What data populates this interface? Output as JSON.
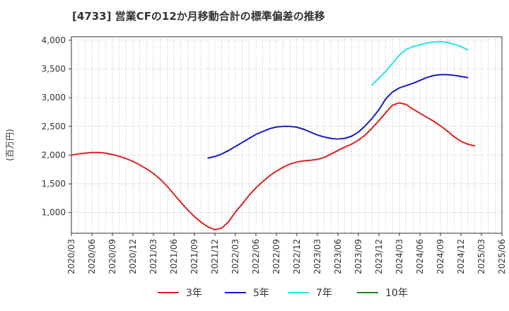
{
  "chart_data": {
    "type": "line",
    "title": "[4733]  営業CFの12か月移動合計の標準偏差の推移",
    "ylabel": "(百万円)",
    "xlabel": "",
    "ylim": [
      640,
      4060
    ],
    "y_ticks": [
      1000,
      1500,
      2000,
      2500,
      3000,
      3500,
      4000
    ],
    "y_tick_labels": [
      "1,000",
      "1,500",
      "2,000",
      "2,500",
      "3,000",
      "3,500",
      "4,000"
    ],
    "x_tick_labels": [
      "2020/03",
      "2020/06",
      "2020/09",
      "2020/12",
      "2021/03",
      "2021/06",
      "2021/09",
      "2021/12",
      "2022/03",
      "2022/06",
      "2022/09",
      "2022/12",
      "2023/03",
      "2023/06",
      "2023/09",
      "2023/12",
      "2024/03",
      "2024/06",
      "2024/09",
      "2024/12",
      "2025/03",
      "2025/06"
    ],
    "grid": true,
    "legend_position": "bottom",
    "series": [
      {
        "name": "3年",
        "color": "#dd2222",
        "points": [
          [
            "2020/03",
            2000
          ],
          [
            "2020/04",
            2020
          ],
          [
            "2020/05",
            2035
          ],
          [
            "2020/06",
            2045
          ],
          [
            "2020/07",
            2045
          ],
          [
            "2020/08",
            2035
          ],
          [
            "2020/09",
            2010
          ],
          [
            "2020/10",
            1980
          ],
          [
            "2020/11",
            1940
          ],
          [
            "2020/12",
            1890
          ],
          [
            "2021/01",
            1830
          ],
          [
            "2021/02",
            1760
          ],
          [
            "2021/03",
            1680
          ],
          [
            "2021/04",
            1580
          ],
          [
            "2021/05",
            1460
          ],
          [
            "2021/06",
            1320
          ],
          [
            "2021/07",
            1180
          ],
          [
            "2021/08",
            1050
          ],
          [
            "2021/09",
            930
          ],
          [
            "2021/10",
            830
          ],
          [
            "2021/11",
            750
          ],
          [
            "2021/12",
            700
          ],
          [
            "2022/01",
            730
          ],
          [
            "2022/02",
            840
          ],
          [
            "2022/03",
            1010
          ],
          [
            "2022/04",
            1150
          ],
          [
            "2022/05",
            1300
          ],
          [
            "2022/06",
            1430
          ],
          [
            "2022/07",
            1540
          ],
          [
            "2022/08",
            1640
          ],
          [
            "2022/09",
            1720
          ],
          [
            "2022/10",
            1790
          ],
          [
            "2022/11",
            1845
          ],
          [
            "2022/12",
            1880
          ],
          [
            "2023/01",
            1900
          ],
          [
            "2023/02",
            1910
          ],
          [
            "2023/03",
            1925
          ],
          [
            "2023/04",
            1960
          ],
          [
            "2023/05",
            2020
          ],
          [
            "2023/06",
            2080
          ],
          [
            "2023/07",
            2140
          ],
          [
            "2023/08",
            2190
          ],
          [
            "2023/09",
            2260
          ],
          [
            "2023/10",
            2350
          ],
          [
            "2023/11",
            2470
          ],
          [
            "2023/12",
            2600
          ],
          [
            "2024/01",
            2740
          ],
          [
            "2024/02",
            2870
          ],
          [
            "2024/03",
            2910
          ],
          [
            "2024/04",
            2880
          ],
          [
            "2024/05",
            2800
          ],
          [
            "2024/06",
            2730
          ],
          [
            "2024/07",
            2660
          ],
          [
            "2024/08",
            2590
          ],
          [
            "2024/09",
            2510
          ],
          [
            "2024/10",
            2420
          ],
          [
            "2024/11",
            2320
          ],
          [
            "2024/12",
            2240
          ],
          [
            "2025/01",
            2190
          ],
          [
            "2025/02",
            2160
          ]
        ]
      },
      {
        "name": "5年",
        "color": "#1a1acc",
        "points": [
          [
            "2021/11",
            1950
          ],
          [
            "2021/12",
            1975
          ],
          [
            "2022/01",
            2020
          ],
          [
            "2022/02",
            2080
          ],
          [
            "2022/03",
            2150
          ],
          [
            "2022/04",
            2220
          ],
          [
            "2022/05",
            2290
          ],
          [
            "2022/06",
            2360
          ],
          [
            "2022/07",
            2410
          ],
          [
            "2022/08",
            2460
          ],
          [
            "2022/09",
            2490
          ],
          [
            "2022/10",
            2500
          ],
          [
            "2022/11",
            2500
          ],
          [
            "2022/12",
            2485
          ],
          [
            "2023/01",
            2450
          ],
          [
            "2023/02",
            2400
          ],
          [
            "2023/03",
            2350
          ],
          [
            "2023/04",
            2315
          ],
          [
            "2023/05",
            2290
          ],
          [
            "2023/06",
            2280
          ],
          [
            "2023/07",
            2290
          ],
          [
            "2023/08",
            2330
          ],
          [
            "2023/09",
            2400
          ],
          [
            "2023/10",
            2510
          ],
          [
            "2023/11",
            2640
          ],
          [
            "2023/12",
            2790
          ],
          [
            "2024/01",
            2980
          ],
          [
            "2024/02",
            3100
          ],
          [
            "2024/03",
            3170
          ],
          [
            "2024/04",
            3210
          ],
          [
            "2024/05",
            3250
          ],
          [
            "2024/06",
            3300
          ],
          [
            "2024/07",
            3350
          ],
          [
            "2024/08",
            3385
          ],
          [
            "2024/09",
            3400
          ],
          [
            "2024/10",
            3400
          ],
          [
            "2024/11",
            3390
          ],
          [
            "2024/12",
            3370
          ],
          [
            "2025/01",
            3350
          ]
        ]
      },
      {
        "name": "7年",
        "color": "#22e5ee",
        "points": [
          [
            "2023/11",
            3220
          ],
          [
            "2023/12",
            3340
          ],
          [
            "2024/01",
            3460
          ],
          [
            "2024/02",
            3600
          ],
          [
            "2024/03",
            3740
          ],
          [
            "2024/04",
            3840
          ],
          [
            "2024/05",
            3890
          ],
          [
            "2024/06",
            3920
          ],
          [
            "2024/07",
            3950
          ],
          [
            "2024/08",
            3970
          ],
          [
            "2024/09",
            3975
          ],
          [
            "2024/10",
            3960
          ],
          [
            "2024/11",
            3930
          ],
          [
            "2024/12",
            3890
          ],
          [
            "2025/01",
            3830
          ]
        ]
      },
      {
        "name": "10年",
        "color": "#228822",
        "points": []
      }
    ]
  }
}
